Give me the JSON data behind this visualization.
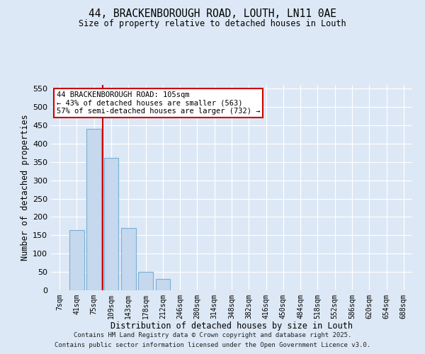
{
  "title_line1": "44, BRACKENBOROUGH ROAD, LOUTH, LN11 0AE",
  "title_line2": "Size of property relative to detached houses in Louth",
  "xlabel": "Distribution of detached houses by size in Louth",
  "ylabel": "Number of detached properties",
  "bar_labels": [
    "7sqm",
    "41sqm",
    "75sqm",
    "109sqm",
    "143sqm",
    "178sqm",
    "212sqm",
    "246sqm",
    "280sqm",
    "314sqm",
    "348sqm",
    "382sqm",
    "416sqm",
    "450sqm",
    "484sqm",
    "518sqm",
    "552sqm",
    "586sqm",
    "620sqm",
    "654sqm",
    "688sqm"
  ],
  "bar_values": [
    0,
    165,
    440,
    362,
    170,
    50,
    30,
    0,
    0,
    0,
    0,
    0,
    0,
    0,
    0,
    0,
    0,
    0,
    0,
    0,
    0
  ],
  "bar_color": "#c5d8ee",
  "bar_edge_color": "#7bafd4",
  "ylim": [
    0,
    560
  ],
  "yticks": [
    0,
    50,
    100,
    150,
    200,
    250,
    300,
    350,
    400,
    450,
    500,
    550
  ],
  "redline_x": 2.5,
  "annotation_text": "44 BRACKENBOROUGH ROAD: 105sqm\n← 43% of detached houses are smaller (563)\n57% of semi-detached houses are larger (732) →",
  "annotation_box_color": "#ffffff",
  "annotation_border_color": "#cc0000",
  "footer_line1": "Contains HM Land Registry data © Crown copyright and database right 2025.",
  "footer_line2": "Contains public sector information licensed under the Open Government Licence v3.0.",
  "background_color": "#dce8f5",
  "plot_bg_color": "#dce8f5",
  "grid_color": "#ffffff"
}
